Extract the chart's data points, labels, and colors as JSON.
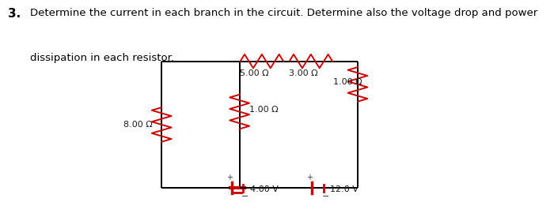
{
  "title_number": "3.",
  "title_text": "Determine the current in each branch in the circuit. Determine also the voltage drop and power",
  "title_text2": "dissipation in each resistor.",
  "bg_color": "#ffffff",
  "resistor_color": "#cc0000",
  "wire_color": "#000000",
  "labels": {
    "R_top_left": "5.00 Ω",
    "R_top_right": "3.00 Ω",
    "R_right": "1.00 Ω",
    "R_mid": "1.00 Ω",
    "R_left": "8.00 Ω",
    "V_left": "4.00 V",
    "V_right": "12.0 V"
  },
  "circuit": {
    "L": 0.36,
    "R": 0.8,
    "T": 0.72,
    "B": 0.13,
    "M": 0.535
  }
}
